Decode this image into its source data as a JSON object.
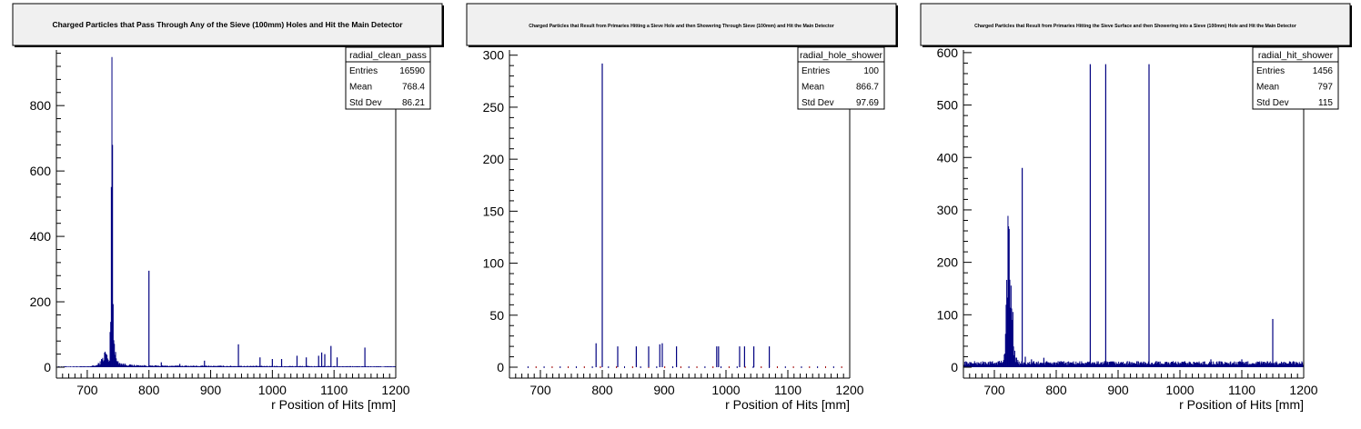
{
  "panels": [
    {
      "title": "Charged Particles that Pass Through Any of the Sieve (100mm) Holes and Hit the Main Detector",
      "stats": {
        "name": "radial_clean_pass",
        "rows": [
          [
            "Entries",
            "16590"
          ],
          [
            "Mean",
            "768.4"
          ],
          [
            "Std Dev",
            "86.21"
          ]
        ]
      }
    },
    {
      "title": "Charged Particles that Result from Primaries Hitting a Sieve Hole and then Showering Through Sieve (100mm) and Hit the Main Detector",
      "stats": {
        "name": "radial_hole_shower",
        "rows": [
          [
            "Entries",
            "100"
          ],
          [
            "Mean",
            "866.7"
          ],
          [
            "Std Dev",
            "97.69"
          ]
        ]
      }
    },
    {
      "title": "Charged Particles that Result from Primaries Hitting the Sieve Surface and then Showering into a Sieve (100mm) Hole and Hit the Main Detector",
      "stats": {
        "name": "radial_hit_shower",
        "rows": [
          [
            "Entries",
            "1456"
          ],
          [
            "Mean",
            "797"
          ],
          [
            "Std Dev",
            "115"
          ]
        ]
      }
    }
  ],
  "chart_data": [
    {
      "type": "histogram",
      "title": "Charged Particles that Pass Through Any of the Sieve (100mm) Holes and Hit the Main Detector",
      "xlabel": "r Position of Hits [mm]",
      "ylabel": "",
      "xlim": [
        650,
        1200
      ],
      "ylim": [
        0,
        970
      ],
      "xticks": [
        700,
        800,
        900,
        1000,
        1100,
        1200
      ],
      "yticks": [
        0,
        200,
        400,
        600,
        800
      ],
      "grid": false,
      "color": "#000080",
      "baseline": 2,
      "peak_profile": [
        [
          700,
          2
        ],
        [
          715,
          5
        ],
        [
          722,
          15
        ],
        [
          727,
          30
        ],
        [
          730,
          45
        ],
        [
          733,
          25
        ],
        [
          736,
          15
        ],
        [
          738,
          200
        ],
        [
          739,
          650
        ],
        [
          740,
          950
        ],
        [
          741,
          550
        ],
        [
          742,
          350
        ],
        [
          743,
          120
        ],
        [
          745,
          40
        ],
        [
          748,
          20
        ],
        [
          755,
          10
        ],
        [
          770,
          6
        ],
        [
          800,
          4
        ],
        [
          1200,
          2
        ]
      ],
      "spikes": [
        [
          800,
          295
        ],
        [
          820,
          15
        ],
        [
          850,
          10
        ],
        [
          890,
          20
        ],
        [
          945,
          70
        ],
        [
          980,
          30
        ],
        [
          1000,
          25
        ],
        [
          1015,
          25
        ],
        [
          1040,
          35
        ],
        [
          1055,
          30
        ],
        [
          1075,
          35
        ],
        [
          1080,
          45
        ],
        [
          1085,
          40
        ],
        [
          1095,
          65
        ],
        [
          1105,
          30
        ],
        [
          1150,
          60
        ]
      ]
    },
    {
      "type": "histogram",
      "title": "Charged Particles that Result from Primaries Hitting a Sieve Hole and then Showering Through Sieve (100mm) and Hit the Main Detector",
      "xlabel": "r Position of Hits [mm]",
      "ylabel": "",
      "xlim": [
        650,
        1200
      ],
      "ylim": [
        0,
        305
      ],
      "xticks": [
        700,
        800,
        900,
        1000,
        1100,
        1200
      ],
      "yticks": [
        0,
        50,
        100,
        150,
        200,
        250,
        300
      ],
      "grid": false,
      "color": "#000080",
      "baseline": 0,
      "peak_profile": [],
      "spikes": [
        [
          790,
          23
        ],
        [
          800,
          292
        ],
        [
          825,
          20
        ],
        [
          855,
          20
        ],
        [
          875,
          20
        ],
        [
          893,
          22
        ],
        [
          897,
          23
        ],
        [
          920,
          20
        ],
        [
          985,
          20
        ],
        [
          988,
          20
        ],
        [
          1022,
          20
        ],
        [
          1030,
          20
        ],
        [
          1045,
          20
        ],
        [
          1070,
          20
        ]
      ]
    },
    {
      "type": "histogram",
      "title": "Charged Particles that Result from Primaries Hitting the Sieve Surface and then Showering into a Sieve (100mm) Hole and Hit the Main Detector",
      "xlabel": "r Position of Hits [mm]",
      "ylabel": "",
      "xlim": [
        650,
        1200
      ],
      "ylim": [
        0,
        605
      ],
      "xticks": [
        700,
        800,
        900,
        1000,
        1100,
        1200
      ],
      "yticks": [
        0,
        100,
        200,
        300,
        400,
        500,
        600
      ],
      "grid": false,
      "color": "#000080",
      "baseline": 8,
      "peak_profile": [
        [
          700,
          8
        ],
        [
          715,
          10
        ],
        [
          718,
          60
        ],
        [
          720,
          200
        ],
        [
          722,
          275
        ],
        [
          724,
          190
        ],
        [
          726,
          150
        ],
        [
          728,
          110
        ],
        [
          730,
          80
        ],
        [
          732,
          40
        ],
        [
          734,
          15
        ],
        [
          740,
          8
        ],
        [
          1200,
          8
        ]
      ],
      "spikes": [
        [
          745,
          380
        ],
        [
          750,
          20
        ],
        [
          760,
          15
        ],
        [
          780,
          18
        ],
        [
          855,
          578
        ],
        [
          880,
          578
        ],
        [
          950,
          578
        ],
        [
          1050,
          15
        ],
        [
          1100,
          15
        ],
        [
          1150,
          92
        ]
      ]
    }
  ]
}
